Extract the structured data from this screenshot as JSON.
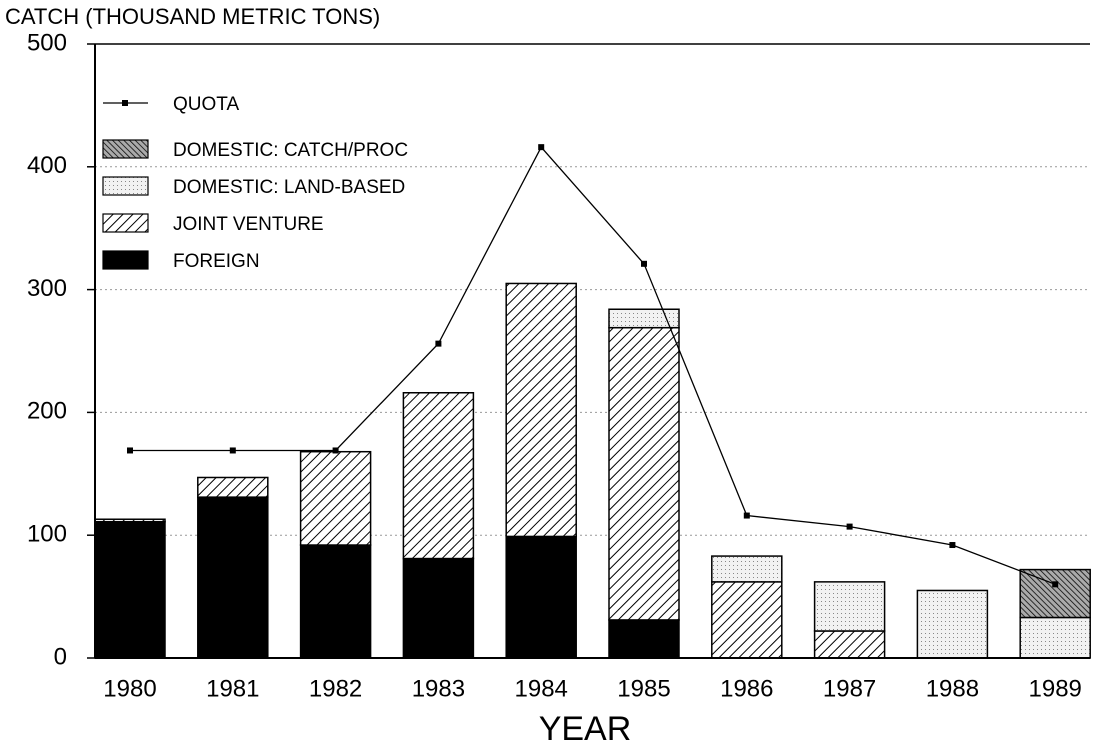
{
  "chart_data": {
    "type": "bar",
    "stacked": true,
    "y_label": "CATCH (THOUSAND METRIC TONS)",
    "x_label": "YEAR",
    "categories": [
      "1980",
      "1981",
      "1982",
      "1983",
      "1984",
      "1985",
      "1986",
      "1987",
      "1988",
      "1989"
    ],
    "ylim": [
      0,
      500
    ],
    "yticks": [
      0,
      100,
      200,
      300,
      400,
      500
    ],
    "grid": true,
    "legend": "upper left",
    "series": [
      {
        "name": "FOREIGN",
        "color": "#000000",
        "pattern": "solid",
        "values": [
          111,
          131,
          92,
          81,
          99,
          31,
          0,
          0,
          0,
          0
        ]
      },
      {
        "name": "JOINT VENTURE",
        "color": "#000000",
        "pattern": "hatch",
        "values": [
          2,
          16,
          76,
          135,
          206,
          238,
          62,
          22,
          0,
          0
        ]
      },
      {
        "name": "DOMESTIC: LAND-BASED",
        "color": "#000000",
        "pattern": "dots",
        "values": [
          0,
          0,
          0,
          0,
          0,
          15,
          21,
          40,
          55,
          33
        ]
      },
      {
        "name": "DOMESTIC: CATCH/PROC",
        "color": "#000000",
        "pattern": "densehatch",
        "values": [
          0,
          0,
          0,
          0,
          0,
          0,
          0,
          0,
          0,
          39
        ]
      }
    ],
    "line_series": [
      {
        "name": "QUOTA",
        "type": "line",
        "color": "#000000",
        "values": [
          169,
          169,
          169,
          256,
          416,
          321,
          116,
          107,
          92,
          60
        ]
      }
    ]
  }
}
